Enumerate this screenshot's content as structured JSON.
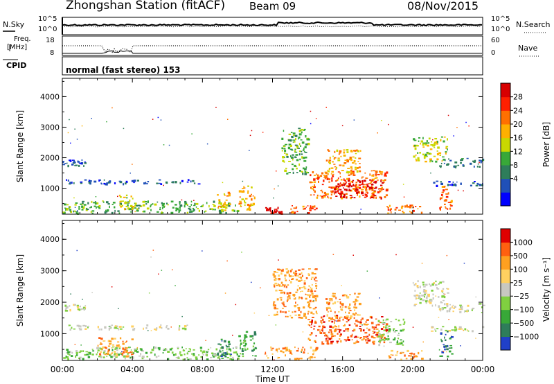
{
  "header": {
    "station": "Zhongshan Station (fitACF)",
    "beam": "Beam 09",
    "date": "08/Nov/2015"
  },
  "strip_labels": {
    "nsky": "N.Sky",
    "nsky_ticks": [
      "10^5",
      "10^0"
    ],
    "nsearch": "N.Search",
    "nsearch_ticks": [
      "10^5",
      "10^0"
    ],
    "freq_line1": "Freq.",
    "freq_line2": "[MHz]",
    "freq_ticks": [
      "18",
      "8"
    ],
    "nave": "Nave",
    "nave_ticks": [
      "60",
      "0"
    ],
    "cpid": "CPID",
    "cpid_text": "normal (fast stereo) 153"
  },
  "chart_data": [
    {
      "type": "heatmap",
      "name": "power",
      "ylabel": "Slant Range [km]",
      "yticks": [
        "1000",
        "2000",
        "3000",
        "4000"
      ],
      "ylim": [
        150,
        4600
      ],
      "xlim_hours": [
        0,
        24
      ],
      "colorbar_label": "Power [dB]",
      "colorbar_ticks": [
        "28",
        "24",
        "20",
        "16",
        "12",
        "8",
        "4"
      ],
      "colorbar_colors": [
        "#0000ff",
        "#2050b8",
        "#2e7d5a",
        "#38a838",
        "#c8d800",
        "#ffb000",
        "#ff7000",
        "#ff2000",
        "#d80000"
      ],
      "patches": [
        {
          "t0": 0.0,
          "t1": 1.3,
          "r0": 1750,
          "r1": 1950,
          "level": 1
        },
        {
          "t0": 0.2,
          "t1": 8.0,
          "r0": 1150,
          "r1": 1300,
          "level": 1
        },
        {
          "t0": 0.0,
          "t1": 10.0,
          "r0": 200,
          "r1": 600,
          "level": 3
        },
        {
          "t0": 3.2,
          "t1": 4.0,
          "r0": 300,
          "r1": 800,
          "level": 4
        },
        {
          "t0": 8.8,
          "t1": 9.6,
          "r0": 300,
          "r1": 900,
          "level": 5
        },
        {
          "t0": 10.0,
          "t1": 11.0,
          "r0": 300,
          "r1": 1100,
          "level": 5
        },
        {
          "t0": 11.5,
          "t1": 12.5,
          "r0": 200,
          "r1": 400,
          "level": 8
        },
        {
          "t0": 12.5,
          "t1": 14.0,
          "r0": 1500,
          "r1": 3000,
          "level": 3
        },
        {
          "t0": 13.0,
          "t1": 14.5,
          "r0": 200,
          "r1": 450,
          "level": 6
        },
        {
          "t0": 14.0,
          "t1": 18.5,
          "r0": 700,
          "r1": 1600,
          "level": 6
        },
        {
          "t0": 15.5,
          "t1": 18.3,
          "r0": 700,
          "r1": 1300,
          "level": 8
        },
        {
          "t0": 15.0,
          "t1": 17.0,
          "r0": 1500,
          "r1": 2300,
          "level": 5
        },
        {
          "t0": 18.5,
          "t1": 20.5,
          "r0": 200,
          "r1": 500,
          "level": 6
        },
        {
          "t0": 20.0,
          "t1": 22.0,
          "r0": 1900,
          "r1": 2700,
          "level": 4
        },
        {
          "t0": 21.5,
          "t1": 24.0,
          "r0": 1700,
          "r1": 2000,
          "level": 2
        },
        {
          "t0": 21.0,
          "t1": 24.0,
          "r0": 1100,
          "r1": 1250,
          "level": 1
        },
        {
          "t0": 21.5,
          "t1": 22.2,
          "r0": 300,
          "r1": 1100,
          "level": 6
        }
      ]
    },
    {
      "type": "heatmap",
      "name": "velocity",
      "ylabel": "Slant Range [km]",
      "xlabel": "Time UT",
      "yticks": [
        "1000",
        "2000",
        "3000",
        "4000"
      ],
      "xticks": [
        "00:00",
        "04:00",
        "08:00",
        "12:00",
        "16:00",
        "20:00",
        "00:00"
      ],
      "ylim": [
        150,
        4600
      ],
      "xlim_hours": [
        0,
        24
      ],
      "colorbar_label": "Velocity [m s⁻¹]",
      "colorbar_ticks": [
        "1000",
        "500",
        "100",
        "25",
        "−25",
        "−100",
        "−500",
        "−1000"
      ],
      "colorbar_colors": [
        "#2040c8",
        "#2e7d5a",
        "#38a838",
        "#80d040",
        "#c8c8c0",
        "#ffd060",
        "#ffa020",
        "#ff6010",
        "#e00000"
      ],
      "patches": [
        {
          "t0": 0.0,
          "t1": 1.3,
          "r0": 1750,
          "r1": 1950,
          "level": 4
        },
        {
          "t0": 0.2,
          "t1": 8.0,
          "r0": 1150,
          "r1": 1300,
          "level": 4
        },
        {
          "t0": 0.0,
          "t1": 10.0,
          "r0": 200,
          "r1": 600,
          "level": 3
        },
        {
          "t0": 2.0,
          "t1": 4.0,
          "r0": 300,
          "r1": 900,
          "level": 6
        },
        {
          "t0": 8.8,
          "t1": 9.6,
          "r0": 300,
          "r1": 900,
          "level": 1
        },
        {
          "t0": 10.0,
          "t1": 11.0,
          "r0": 300,
          "r1": 1100,
          "level": 2
        },
        {
          "t0": 11.5,
          "t1": 14.5,
          "r0": 200,
          "r1": 600,
          "level": 6
        },
        {
          "t0": 12.0,
          "t1": 14.5,
          "r0": 1500,
          "r1": 3100,
          "level": 6
        },
        {
          "t0": 14.0,
          "t1": 18.5,
          "r0": 700,
          "r1": 1600,
          "level": 7
        },
        {
          "t0": 15.0,
          "t1": 17.0,
          "r0": 1500,
          "r1": 2300,
          "level": 6
        },
        {
          "t0": 18.0,
          "t1": 19.5,
          "r0": 600,
          "r1": 1500,
          "level": 3
        },
        {
          "t0": 20.0,
          "t1": 22.0,
          "r0": 1900,
          "r1": 2700,
          "level": 4
        },
        {
          "t0": 21.5,
          "t1": 24.0,
          "r0": 1700,
          "r1": 2000,
          "level": 4
        },
        {
          "t0": 21.0,
          "t1": 24.0,
          "r0": 1100,
          "r1": 1250,
          "level": 4
        },
        {
          "t0": 21.5,
          "t1": 22.2,
          "r0": 300,
          "r1": 1100,
          "level": 1
        },
        {
          "t0": 18.5,
          "t1": 20.5,
          "r0": 200,
          "r1": 500,
          "level": 6
        }
      ]
    }
  ]
}
